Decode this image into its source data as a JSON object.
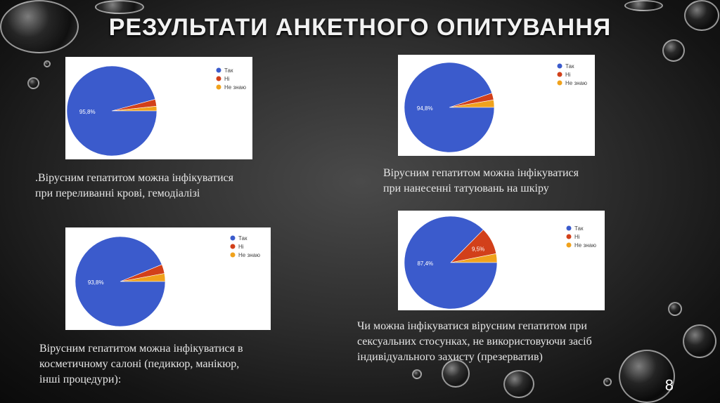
{
  "slide": {
    "title": "РЕЗУЛЬТАТИ АНКЕТНОГО ОПИТУВАННЯ",
    "page_number": "8"
  },
  "captions": [
    {
      "lines": [
        ".Вірусним гепатитом можна інфікуватися",
        "при переливанні крові, гемодіалізі"
      ]
    },
    {
      "lines": [
        "Вірусним гепатитом можна інфікуватися",
        "при нанесенні татуювань на шкіру"
      ]
    },
    {
      "lines": [
        "Вірусним гепатитом можна інфікуватися в",
        "косметичному салоні (педикюр, манікюр,",
        "інші процедури):"
      ]
    },
    {
      "lines": [
        "Чи можна інфікуватися вірусним гепатитом при",
        "сексуальних стосунках, не використовуючи засіб",
        "індивідуального захисту (презерватив)"
      ]
    }
  ],
  "colors": {
    "tak": "#3b5bcc",
    "ni": "#d2401a",
    "ne_znayu": "#f0a21c"
  },
  "chart_data": [
    {
      "type": "pie",
      "legend": [
        "Так",
        "Ні",
        "Не знаю"
      ],
      "values": [
        95.8,
        2.5,
        1.7
      ],
      "data_labels": [
        "95,8%",
        "",
        ""
      ],
      "legend_position": "top-right"
    },
    {
      "type": "pie",
      "legend": [
        "Так",
        "Ні",
        "Не знаю"
      ],
      "values": [
        94.8,
        2.5,
        2.7
      ],
      "data_labels": [
        "94,8%",
        "",
        ""
      ],
      "legend_position": "top-right"
    },
    {
      "type": "pie",
      "legend": [
        "Так",
        "Ні",
        "Не знаю"
      ],
      "values": [
        93.8,
        3.3,
        2.9
      ],
      "data_labels": [
        "93,8%",
        "",
        ""
      ],
      "legend_position": "top-right"
    },
    {
      "type": "pie",
      "legend": [
        "Так",
        "Ні",
        "Не знаю"
      ],
      "values": [
        87.4,
        9.5,
        3.1
      ],
      "data_labels": [
        "87,4%",
        "9,5%",
        ""
      ],
      "legend_position": "top-right"
    }
  ]
}
